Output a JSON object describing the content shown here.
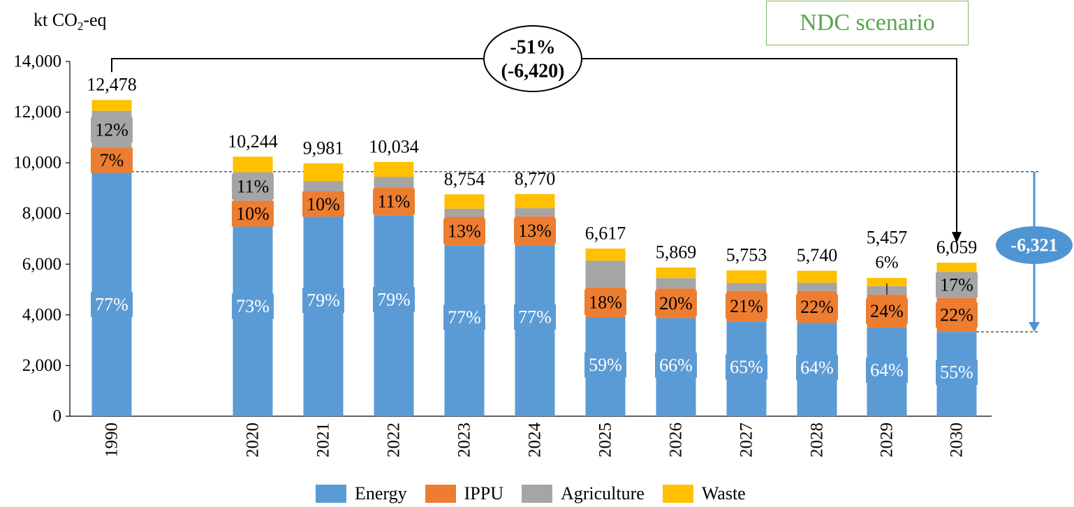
{
  "y_unit": {
    "prefix": "kt CO",
    "sub": "2",
    "suffix": "-eq"
  },
  "scenario_label": "NDC scenario",
  "colors": {
    "Energy": "#5b9bd5",
    "IPPU": "#ed7d31",
    "Agriculture": "#a5a5a5",
    "Waste": "#ffc000",
    "arrow_blue": "#4f95d3"
  },
  "chart_data": {
    "type": "bar",
    "stacked": true,
    "categories": [
      "1990",
      "2020",
      "2021",
      "2022",
      "2023",
      "2024",
      "2025",
      "2026",
      "2027",
      "2028",
      "2029",
      "2030"
    ],
    "ylim": [
      0,
      14000
    ],
    "yticks": [
      "0",
      "2,000",
      "4,000",
      "6,000",
      "8,000",
      "10,000",
      "12,000",
      "14,000"
    ],
    "ytick_values": [
      0,
      2000,
      4000,
      6000,
      8000,
      10000,
      12000,
      14000
    ],
    "series": [
      {
        "name": "Energy",
        "values": [
          9650,
          7480,
          7880,
          7930,
          6730,
          6750,
          3900,
          3870,
          3740,
          3680,
          3490,
          3330
        ]
      },
      {
        "name": "IPPU",
        "values": [
          900,
          1020,
          980,
          1100,
          1140,
          1140,
          1190,
          1170,
          1210,
          1260,
          1310,
          1330
        ]
      },
      {
        "name": "Agriculture",
        "values": [
          1500,
          1130,
          420,
          420,
          320,
          320,
          1050,
          410,
          310,
          330,
          330,
          1030
        ]
      },
      {
        "name": "Waste",
        "values": [
          428,
          614,
          701,
          584,
          564,
          560,
          477,
          419,
          493,
          470,
          327,
          369
        ]
      }
    ],
    "totals": [
      "12,478",
      "10,244",
      "9,981",
      "10,034",
      "8,754",
      "8,770",
      "6,617",
      "5,869",
      "5,753",
      "5,740",
      "5,457",
      "6,059"
    ],
    "pct_labels": {
      "Energy": [
        "77%",
        "73%",
        "79%",
        "79%",
        "77%",
        "77%",
        "59%",
        "66%",
        "65%",
        "64%",
        "64%",
        "55%"
      ],
      "IPPU": [
        "7%",
        "10%",
        "10%",
        "11%",
        "13%",
        "13%",
        "18%",
        "20%",
        "21%",
        "22%",
        "24%",
        "22%"
      ],
      "Agriculture": [
        "12%",
        "11%",
        "",
        "",
        "",
        "",
        "",
        "",
        "",
        "",
        "6%",
        "17%"
      ]
    },
    "annotations": {
      "reduction_total": {
        "line1": "-51%",
        "line2": "(-6,420)"
      },
      "reduction_energy": "-6,321"
    },
    "legend_position": "bottom",
    "grid": false
  }
}
